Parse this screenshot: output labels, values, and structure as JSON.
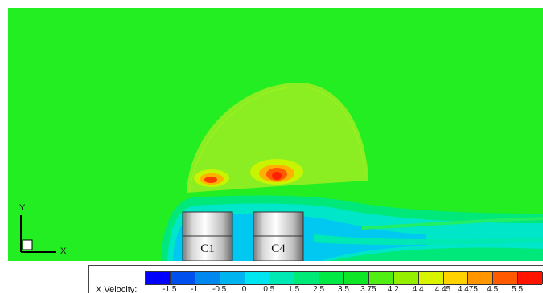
{
  "cylinders": {
    "left_label": "C1",
    "right_label": "C4"
  },
  "axes_triad": {
    "y_label": "Y",
    "x_label": "X"
  },
  "legend": {
    "variable": "X Velocity:",
    "ticks": [
      "-1.5",
      "-1",
      "-0.5",
      "0",
      "0.5",
      "1.5",
      "2.5",
      "3.5",
      "3.75",
      "4.2",
      "4.4",
      "4.45",
      "4.475",
      "4.5",
      "5.5"
    ],
    "colors": [
      "#0000ff",
      "#0050ee",
      "#0088ee",
      "#00b4f0",
      "#00e6f0",
      "#00e8b4",
      "#00ea78",
      "#00ea46",
      "#10e628",
      "#50ee12",
      "#94f000",
      "#d8f400",
      "#ffd200",
      "#ff9600",
      "#ff5a00",
      "#ff1400"
    ]
  },
  "palette": {
    "background_field": "#22ee22",
    "dome": "#88ee22",
    "hot_spot": "#ff3300",
    "wake_cyan": "#00c8f0"
  }
}
